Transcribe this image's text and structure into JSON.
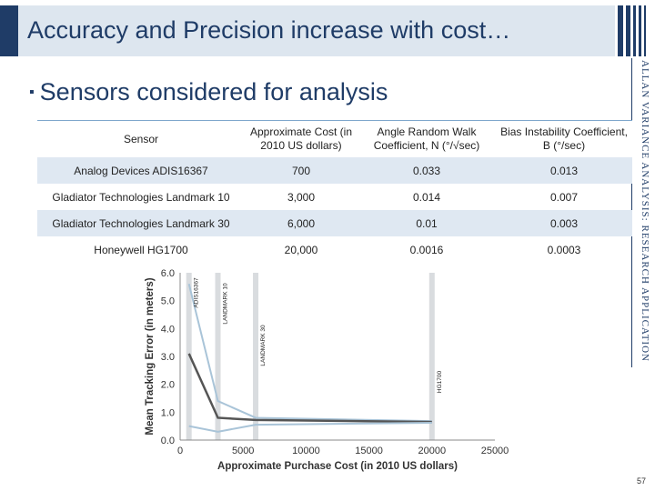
{
  "header": {
    "title": "Accuracy and Precision increase with cost…"
  },
  "bullet": "Sensors considered for analysis",
  "side_label": "ALLAN VARIANCE ANALYSIS: RESEARCH APPLICATION",
  "table": {
    "headers": [
      "Sensor",
      "Approximate Cost (in 2010 US dollars)",
      "Angle Random Walk Coefficient, N (°/√sec)",
      "Bias Instability Coefficient, B (°/sec)"
    ],
    "rows": [
      [
        "Analog Devices ADIS16367",
        "700",
        "0.033",
        "0.013"
      ],
      [
        "Gladiator Technologies Landmark 10",
        "3,000",
        "0.014",
        "0.007"
      ],
      [
        "Gladiator Technologies Landmark 30",
        "6,000",
        "0.01",
        "0.003"
      ],
      [
        "Honeywell HG1700",
        "20,000",
        "0.0016",
        "0.0003"
      ]
    ]
  },
  "chart_data": {
    "type": "line",
    "xlabel": "Approximate Purchase Cost (in 2010 US dollars)",
    "ylabel": "Mean Tracking Error (in meters)",
    "xlim": [
      0,
      25000
    ],
    "ylim": [
      0,
      6
    ],
    "xticks": [
      0,
      5000,
      10000,
      15000,
      20000,
      25000
    ],
    "xtick_labels": [
      "0",
      "5000",
      "10000",
      "15000",
      "20000",
      "25000"
    ],
    "yticks": [
      0,
      1,
      2,
      3,
      4,
      5,
      6
    ],
    "ytick_labels": [
      "0.0",
      "1.0",
      "2.0",
      "3.0",
      "4.0",
      "5.0",
      "6.0"
    ],
    "x": [
      700,
      3000,
      6000,
      20000
    ],
    "series": [
      {
        "values": [
          5.6,
          1.4,
          0.8,
          0.68
        ],
        "color": "#a9c4d8"
      },
      {
        "values": [
          3.1,
          0.8,
          0.72,
          0.65
        ],
        "color": "#555555"
      },
      {
        "values": [
          0.5,
          0.3,
          0.55,
          0.62
        ],
        "color": "#a9c4d8"
      }
    ],
    "markers": [
      {
        "x": 700,
        "label": "ADIS16367"
      },
      {
        "x": 3000,
        "label": "LANDMARK 10"
      },
      {
        "x": 6000,
        "label": "LANDMARK 30"
      },
      {
        "x": 20000,
        "label": "HG1700"
      }
    ],
    "grid": false
  },
  "page_number": "57"
}
